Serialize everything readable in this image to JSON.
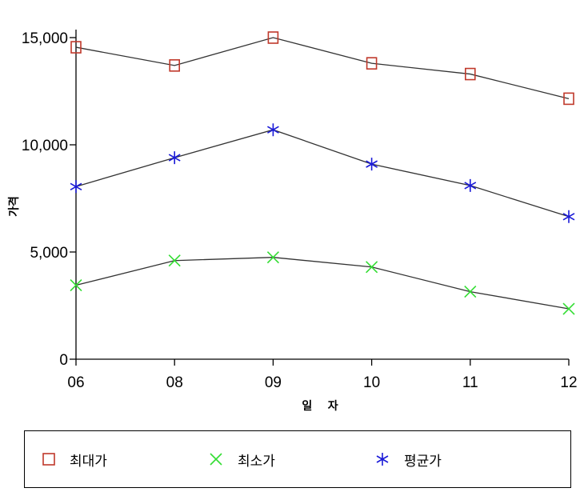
{
  "chart_data": {
    "type": "line",
    "title": "",
    "xlabel": "일 자",
    "ylabel": "가격",
    "categories": [
      "06",
      "08",
      "09",
      "10",
      "11",
      "12"
    ],
    "ylim": [
      0,
      15000
    ],
    "yticks": [
      0,
      5000,
      10000,
      15000
    ],
    "ytick_labels": [
      "0",
      "5,000",
      "10,000",
      "15,000"
    ],
    "grid": false,
    "legend": "bottom",
    "series": [
      {
        "name": "최대가",
        "values": [
          14550,
          13700,
          15000,
          13800,
          13300,
          12150
        ],
        "color": "#c0392b",
        "marker": "square"
      },
      {
        "name": "최소가",
        "values": [
          3450,
          4600,
          4750,
          4300,
          3150,
          2350
        ],
        "color": "#33dd33",
        "marker": "x"
      },
      {
        "name": "평균가",
        "values": [
          8050,
          9400,
          10700,
          9100,
          8100,
          6650
        ],
        "color": "#1a1ad8",
        "marker": "asterisk"
      }
    ]
  }
}
